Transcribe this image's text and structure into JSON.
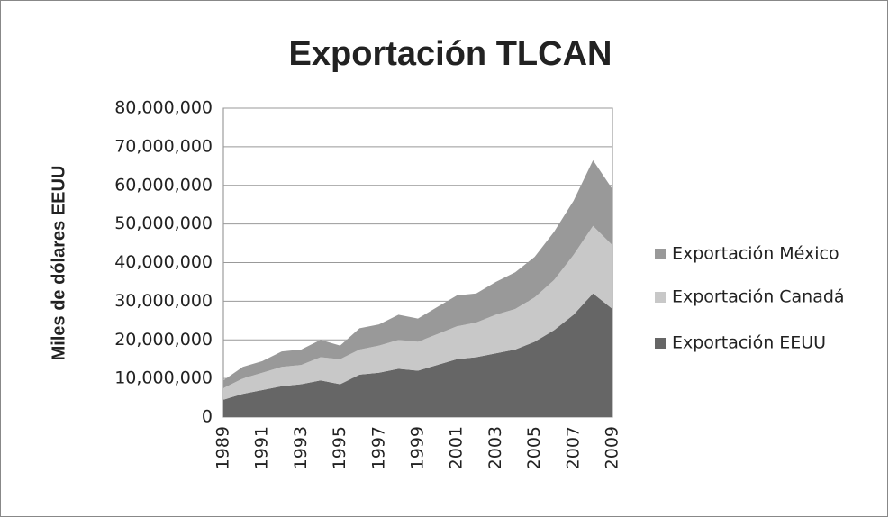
{
  "chart_data": {
    "type": "stacked_area",
    "title": "Exportación TLCAN",
    "y_label": "Miles de dólares EEUU",
    "categories": [
      "1989",
      null,
      "1991",
      null,
      "1993",
      null,
      "1995",
      null,
      "1997",
      null,
      "1999",
      null,
      "2001",
      null,
      "2003",
      null,
      "2005",
      null,
      "2007",
      null,
      "2009"
    ],
    "series": [
      {
        "name": "Exportación EEUU",
        "color": "#666666",
        "values": [
          4500000,
          6000000,
          7000000,
          8000000,
          8500000,
          9500000,
          8500000,
          11000000,
          11500000,
          12500000,
          12000000,
          13500000,
          15000000,
          15500000,
          16500000,
          17500000,
          19500000,
          22500000,
          26500000,
          32000000,
          28000000
        ]
      },
      {
        "name": "Exportación Canadá",
        "color": "#c8c8c8",
        "values": [
          3000000,
          4000000,
          4500000,
          5000000,
          5000000,
          6000000,
          6500000,
          6500000,
          7000000,
          7500000,
          7500000,
          8000000,
          8500000,
          9000000,
          10000000,
          10500000,
          11500000,
          13000000,
          15500000,
          17500000,
          16500000
        ]
      },
      {
        "name": "Exportación México",
        "color": "#999999",
        "values": [
          2000000,
          3000000,
          3000000,
          4000000,
          4000000,
          4500000,
          3500000,
          5500000,
          5500000,
          6500000,
          6000000,
          7000000,
          8000000,
          7500000,
          8500000,
          9500000,
          10500000,
          12500000,
          14000000,
          17000000,
          14500000
        ]
      }
    ],
    "ylim": [
      0,
      80000000
    ],
    "yticks": [
      0,
      {
        "value": 10000000,
        "label": "10,000,000"
      },
      {
        "value": 20000000,
        "label": "20,000,000"
      },
      {
        "value": 30000000,
        "label": "30,000,000"
      },
      {
        "value": 40000000,
        "label": "40,000,000"
      },
      {
        "value": 50000000,
        "label": "50,000,000"
      },
      {
        "value": 60000000,
        "label": "60,000,000"
      },
      {
        "value": 70000000,
        "label": "70,000,000"
      },
      {
        "value": 80000000,
        "label": "80,000,000"
      }
    ],
    "grid": true,
    "legend": "right"
  }
}
